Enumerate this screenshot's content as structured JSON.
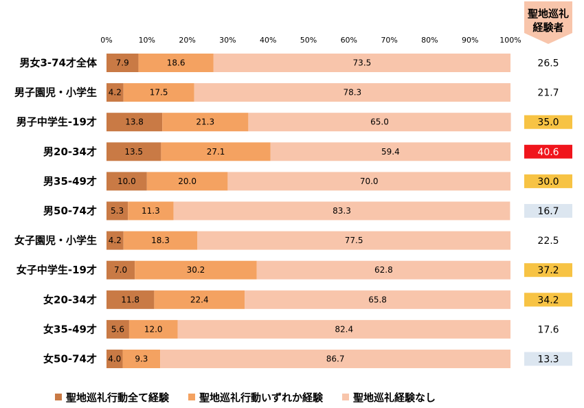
{
  "chart_data": {
    "type": "bar",
    "orientation": "horizontal",
    "stacked": true,
    "xlim": [
      0,
      100
    ],
    "x_ticks": [
      "0%",
      "10%",
      "20%",
      "30%",
      "40%",
      "50%",
      "60%",
      "70%",
      "80%",
      "90%",
      "100%"
    ],
    "categories": [
      "男女3-74才全体",
      "男子園児・小学生",
      "男子中学生-19才",
      "男20-34才",
      "男35-49才",
      "男50-74才",
      "女子園児・小学生",
      "女子中学生-19才",
      "女20-34才",
      "女35-49才",
      "女50-74才"
    ],
    "series": [
      {
        "name": "聖地巡礼行動全て経験",
        "color": "#c97a45",
        "values": [
          7.9,
          4.2,
          13.8,
          13.5,
          10.0,
          5.3,
          4.2,
          7.0,
          11.8,
          5.6,
          4.0
        ]
      },
      {
        "name": "聖地巡礼行動いずれか経験",
        "color": "#f4a261",
        "values": [
          18.6,
          17.5,
          21.3,
          27.1,
          20.0,
          11.3,
          18.3,
          30.2,
          22.4,
          12.0,
          9.3
        ]
      },
      {
        "name": "聖地巡礼経験なし",
        "color": "#f8c5ab",
        "values": [
          73.5,
          78.3,
          65.0,
          59.4,
          70.0,
          83.3,
          77.5,
          62.8,
          65.8,
          82.4,
          86.7
        ]
      }
    ],
    "legend_position": "bottom",
    "grid": false
  },
  "side_column": {
    "header_line1": "聖地巡礼",
    "header_line2": "経験者",
    "header_color": "#f8c5ab",
    "values": [
      "26.5",
      "21.7",
      "35.0",
      "40.6",
      "30.0",
      "16.7",
      "22.5",
      "37.2",
      "34.2",
      "17.6",
      "13.3"
    ],
    "highlight_colors": [
      "",
      "",
      "#f7c344",
      "#f0151c",
      "#f7c344",
      "#dce6f0",
      "",
      "#f7c344",
      "#f7c344",
      "",
      "#dce6f0"
    ],
    "text_colors": [
      "#000000",
      "#000000",
      "#000000",
      "#ffffff",
      "#000000",
      "#000000",
      "#000000",
      "#000000",
      "#000000",
      "#000000",
      "#000000"
    ]
  }
}
